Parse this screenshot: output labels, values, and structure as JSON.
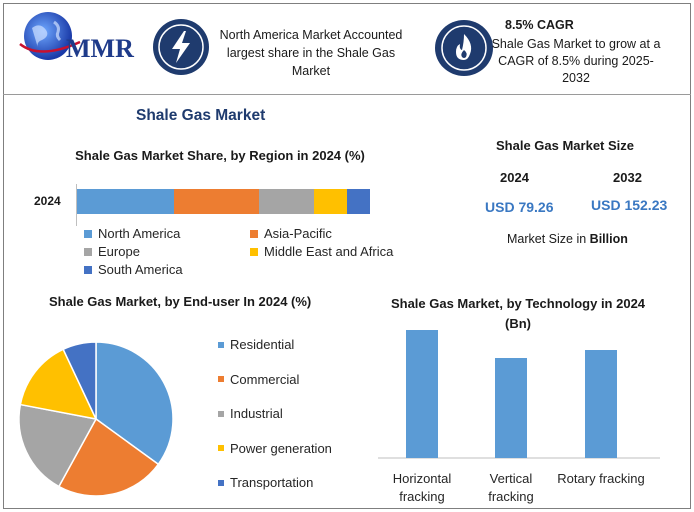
{
  "brand": {
    "name": "MMR"
  },
  "info1": {
    "text": "North America Market Accounted largest share in the Shale Gas Market",
    "icon": "lightning-icon"
  },
  "info2": {
    "title": "8.5% CAGR",
    "text": "Shale Gas Market to grow at a CAGR of 8.5% during 2025-2032",
    "icon": "flame-icon"
  },
  "main_title": "Shale Gas Market",
  "market_size": {
    "title": "Shale Gas Market Size",
    "year1": "2024",
    "year2": "2032",
    "value1": "USD 79.26",
    "value2": "USD 152.23",
    "note_prefix": "Market Size in ",
    "note_bold": "Billion"
  },
  "colors": {
    "blue": "#5b9bd5",
    "orange": "#ed7d31",
    "gray": "#a5a5a5",
    "yellow": "#ffc000",
    "darkblue": "#4472c4",
    "navy": "#1f3b6e"
  },
  "chart_data": [
    {
      "type": "bar",
      "orientation": "horizontal-stacked",
      "title": "Shale Gas Market Share, by Region in 2024 (%)",
      "categories": [
        "2024"
      ],
      "series": [
        {
          "name": "North America",
          "values": [
            33
          ],
          "color": "#5b9bd5"
        },
        {
          "name": "Asia-Pacific",
          "values": [
            29
          ],
          "color": "#ed7d31"
        },
        {
          "name": "Europe",
          "values": [
            19
          ],
          "color": "#a5a5a5"
        },
        {
          "name": "Middle East and Africa",
          "values": [
            11
          ],
          "color": "#ffc000"
        },
        {
          "name": "South America",
          "values": [
            8
          ],
          "color": "#4472c4"
        }
      ]
    },
    {
      "type": "pie",
      "title": "Shale Gas Market, by End-user In 2024 (%)",
      "labels": [
        "Residential",
        "Commercial",
        "Industrial",
        "Power generation",
        "Transportation"
      ],
      "values": [
        35,
        23,
        20,
        15,
        7
      ],
      "colors": [
        "#5b9bd5",
        "#ed7d31",
        "#a5a5a5",
        "#ffc000",
        "#4472c4"
      ]
    },
    {
      "type": "bar",
      "title": "Shale Gas Market, by Technology in 2024 (Bn)",
      "categories": [
        "Horizontal fracking",
        "Vertical fracking",
        "Rotary fracking"
      ],
      "values": [
        32,
        25,
        27
      ],
      "ylim": [
        0,
        35
      ],
      "color": "#5b9bd5"
    }
  ]
}
